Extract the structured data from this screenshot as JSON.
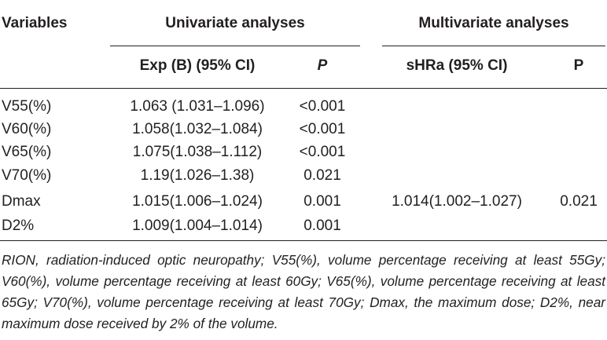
{
  "table": {
    "headers": {
      "variables": "Variables",
      "univariate_group": "Univariate analyses",
      "multivariate_group": "Multivariate analyses",
      "exp_b": "Exp (B) (95% CI)",
      "p_univariate": "P",
      "shra": "sHRa (95% CI)",
      "p_multivariate": "P"
    },
    "rows": [
      {
        "variable": "V55(%)",
        "exp_b": "1.063 (1.031–1.096)",
        "p_uni": "<0.001",
        "shra": "",
        "p_multi": ""
      },
      {
        "variable": "V60(%)",
        "exp_b": "1.058(1.032–1.084)",
        "p_uni": "<0.001",
        "shra": "",
        "p_multi": ""
      },
      {
        "variable": "V65(%)",
        "exp_b": "1.075(1.038–1.112)",
        "p_uni": "<0.001",
        "shra": "",
        "p_multi": ""
      },
      {
        "variable": "V70(%)",
        "exp_b": "1.19(1.026–1.38)",
        "p_uni": "0.021",
        "shra": "",
        "p_multi": ""
      },
      {
        "variable": "Dmax",
        "exp_b": "1.015(1.006–1.024)",
        "p_uni": "0.001",
        "shra": "1.014(1.002–1.027)",
        "p_multi": "0.021"
      },
      {
        "variable": "D2%",
        "exp_b": "1.009(1.004–1.014)",
        "p_uni": "0.001",
        "shra": "",
        "p_multi": ""
      }
    ]
  },
  "footnote": "RION, radiation-induced optic neuropathy; V55(%), volume percentage receiving at least 55Gy; V60(%), volume percentage receiving at least 60Gy; V65(%), volume percentage receiving at least 65Gy; V70(%), volume percentage receiving at least 70Gy; Dmax, the maximum dose; D2%, near maximum dose received by 2% of the volume."
}
